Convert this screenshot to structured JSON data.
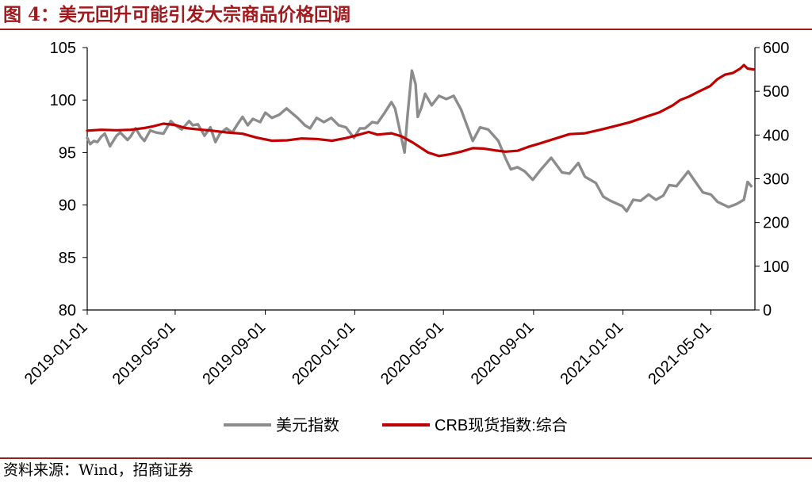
{
  "figure": {
    "title": "图 4：美元回升可能引发大宗商品价格回调",
    "source": "资料来源：Wind，招商证券"
  },
  "colors": {
    "accent": "#a31a1e",
    "usd_series": "#8c8c8c",
    "crb_series": "#c00000",
    "axis": "#000000"
  },
  "chart_data": {
    "type": "line",
    "xlim": [
      "2019-01-01",
      "2021-06-30"
    ],
    "x_ticks": [
      "2019-01-01",
      "2019-05-01",
      "2019-09-01",
      "2020-01-01",
      "2020-05-01",
      "2020-09-01",
      "2021-01-01",
      "2021-05-01"
    ],
    "y_left": {
      "lim": [
        80,
        105
      ],
      "ticks": [
        80,
        85,
        90,
        95,
        100,
        105
      ]
    },
    "y_right": {
      "lim": [
        0,
        600
      ],
      "ticks": [
        0,
        100,
        200,
        300,
        400,
        500,
        600
      ]
    },
    "grid": false,
    "legend": "bottom",
    "series": [
      {
        "name": "美元指数",
        "axis": "left",
        "color": "#8c8c8c",
        "points": [
          [
            "2019-01-01",
            96.4
          ],
          [
            "2019-01-05",
            95.8
          ],
          [
            "2019-01-10",
            96.1
          ],
          [
            "2019-01-15",
            96.0
          ],
          [
            "2019-01-20",
            96.5
          ],
          [
            "2019-01-25",
            96.8
          ],
          [
            "2019-02-01",
            95.6
          ],
          [
            "2019-02-10",
            96.6
          ],
          [
            "2019-02-15",
            96.9
          ],
          [
            "2019-02-25",
            96.2
          ],
          [
            "2019-03-01",
            96.5
          ],
          [
            "2019-03-08",
            97.3
          ],
          [
            "2019-03-15",
            96.5
          ],
          [
            "2019-03-20",
            96.1
          ],
          [
            "2019-03-28",
            97.1
          ],
          [
            "2019-04-05",
            96.9
          ],
          [
            "2019-04-15",
            96.8
          ],
          [
            "2019-04-25",
            98.0
          ],
          [
            "2019-05-01",
            97.6
          ],
          [
            "2019-05-10",
            97.2
          ],
          [
            "2019-05-20",
            98.0
          ],
          [
            "2019-05-25",
            97.6
          ],
          [
            "2019-06-01",
            97.7
          ],
          [
            "2019-06-10",
            96.6
          ],
          [
            "2019-06-18",
            97.4
          ],
          [
            "2019-06-25",
            96.0
          ],
          [
            "2019-07-01",
            96.8
          ],
          [
            "2019-07-10",
            97.3
          ],
          [
            "2019-07-18",
            96.9
          ],
          [
            "2019-07-25",
            97.7
          ],
          [
            "2019-08-01",
            98.4
          ],
          [
            "2019-08-08",
            97.6
          ],
          [
            "2019-08-15",
            98.2
          ],
          [
            "2019-08-25",
            97.9
          ],
          [
            "2019-09-01",
            98.8
          ],
          [
            "2019-09-10",
            98.3
          ],
          [
            "2019-09-20",
            98.6
          ],
          [
            "2019-09-30",
            99.2
          ],
          [
            "2019-10-05",
            98.9
          ],
          [
            "2019-10-15",
            98.3
          ],
          [
            "2019-10-25",
            97.6
          ],
          [
            "2019-11-01",
            97.3
          ],
          [
            "2019-11-10",
            98.3
          ],
          [
            "2019-11-20",
            97.9
          ],
          [
            "2019-11-30",
            98.3
          ],
          [
            "2019-12-10",
            97.6
          ],
          [
            "2019-12-20",
            97.4
          ],
          [
            "2019-12-31",
            96.4
          ],
          [
            "2020-01-08",
            97.3
          ],
          [
            "2020-01-15",
            97.3
          ],
          [
            "2020-01-25",
            97.9
          ],
          [
            "2020-02-01",
            97.8
          ],
          [
            "2020-02-10",
            98.7
          ],
          [
            "2020-02-20",
            99.8
          ],
          [
            "2020-02-25",
            99.2
          ],
          [
            "2020-03-01",
            97.6
          ],
          [
            "2020-03-09",
            95.0
          ],
          [
            "2020-03-13",
            98.5
          ],
          [
            "2020-03-19",
            102.8
          ],
          [
            "2020-03-24",
            101.5
          ],
          [
            "2020-03-27",
            98.4
          ],
          [
            "2020-04-01",
            99.3
          ],
          [
            "2020-04-06",
            100.6
          ],
          [
            "2020-04-15",
            99.5
          ],
          [
            "2020-04-25",
            100.4
          ],
          [
            "2020-05-05",
            100.1
          ],
          [
            "2020-05-15",
            100.4
          ],
          [
            "2020-05-25",
            99.1
          ],
          [
            "2020-06-01",
            97.8
          ],
          [
            "2020-06-10",
            96.1
          ],
          [
            "2020-06-20",
            97.4
          ],
          [
            "2020-07-01",
            97.2
          ],
          [
            "2020-07-15",
            96.1
          ],
          [
            "2020-07-25",
            94.4
          ],
          [
            "2020-08-01",
            93.4
          ],
          [
            "2020-08-10",
            93.6
          ],
          [
            "2020-08-20",
            93.2
          ],
          [
            "2020-08-31",
            92.4
          ],
          [
            "2020-09-10",
            93.3
          ],
          [
            "2020-09-25",
            94.5
          ],
          [
            "2020-10-10",
            93.1
          ],
          [
            "2020-10-20",
            93.0
          ],
          [
            "2020-11-01",
            94.0
          ],
          [
            "2020-11-10",
            92.7
          ],
          [
            "2020-11-25",
            92.1
          ],
          [
            "2020-12-05",
            90.8
          ],
          [
            "2020-12-15",
            90.4
          ],
          [
            "2020-12-31",
            89.9
          ],
          [
            "2021-01-06",
            89.4
          ],
          [
            "2021-01-15",
            90.5
          ],
          [
            "2021-01-25",
            90.4
          ],
          [
            "2021-02-05",
            91.0
          ],
          [
            "2021-02-15",
            90.5
          ],
          [
            "2021-02-25",
            90.9
          ],
          [
            "2021-03-05",
            91.9
          ],
          [
            "2021-03-15",
            91.8
          ],
          [
            "2021-03-31",
            93.2
          ],
          [
            "2021-04-10",
            92.2
          ],
          [
            "2021-04-20",
            91.2
          ],
          [
            "2021-05-01",
            91.0
          ],
          [
            "2021-05-10",
            90.3
          ],
          [
            "2021-05-25",
            89.8
          ],
          [
            "2021-06-05",
            90.1
          ],
          [
            "2021-06-15",
            90.5
          ],
          [
            "2021-06-20",
            92.2
          ],
          [
            "2021-06-25",
            91.8
          ]
        ]
      },
      {
        "name": "CRB现货指数:综合",
        "axis": "right",
        "color": "#c00000",
        "points": [
          [
            "2019-01-01",
            410
          ],
          [
            "2019-01-20",
            412
          ],
          [
            "2019-02-10",
            411
          ],
          [
            "2019-03-01",
            412
          ],
          [
            "2019-03-20",
            416
          ],
          [
            "2019-04-01",
            420
          ],
          [
            "2019-04-15",
            426
          ],
          [
            "2019-05-01",
            423
          ],
          [
            "2019-05-15",
            416
          ],
          [
            "2019-06-01",
            413
          ],
          [
            "2019-06-20",
            410
          ],
          [
            "2019-07-10",
            406
          ],
          [
            "2019-08-01",
            403
          ],
          [
            "2019-08-20",
            394
          ],
          [
            "2019-09-10",
            387
          ],
          [
            "2019-10-01",
            388
          ],
          [
            "2019-10-20",
            392
          ],
          [
            "2019-11-10",
            391
          ],
          [
            "2019-12-01",
            387
          ],
          [
            "2019-12-20",
            393
          ],
          [
            "2020-01-05",
            400
          ],
          [
            "2020-01-20",
            407
          ],
          [
            "2020-02-01",
            401
          ],
          [
            "2020-02-20",
            404
          ],
          [
            "2020-03-05",
            397
          ],
          [
            "2020-03-20",
            383
          ],
          [
            "2020-04-10",
            360
          ],
          [
            "2020-04-25",
            352
          ],
          [
            "2020-05-10",
            356
          ],
          [
            "2020-05-25",
            362
          ],
          [
            "2020-06-10",
            370
          ],
          [
            "2020-06-25",
            369
          ],
          [
            "2020-07-10",
            365
          ],
          [
            "2020-07-25",
            362
          ],
          [
            "2020-08-10",
            364
          ],
          [
            "2020-08-25",
            373
          ],
          [
            "2020-09-10",
            381
          ],
          [
            "2020-10-01",
            392
          ],
          [
            "2020-10-20",
            402
          ],
          [
            "2020-11-10",
            404
          ],
          [
            "2020-12-01",
            412
          ],
          [
            "2020-12-20",
            420
          ],
          [
            "2021-01-10",
            429
          ],
          [
            "2021-01-31",
            441
          ],
          [
            "2021-02-20",
            452
          ],
          [
            "2021-03-10",
            468
          ],
          [
            "2021-03-20",
            480
          ],
          [
            "2021-04-01",
            488
          ],
          [
            "2021-04-15",
            500
          ],
          [
            "2021-04-30",
            512
          ],
          [
            "2021-05-10",
            528
          ],
          [
            "2021-05-20",
            538
          ],
          [
            "2021-05-31",
            542
          ],
          [
            "2021-06-10",
            552
          ],
          [
            "2021-06-15",
            560
          ],
          [
            "2021-06-20",
            552
          ],
          [
            "2021-06-28",
            550
          ]
        ]
      }
    ]
  }
}
